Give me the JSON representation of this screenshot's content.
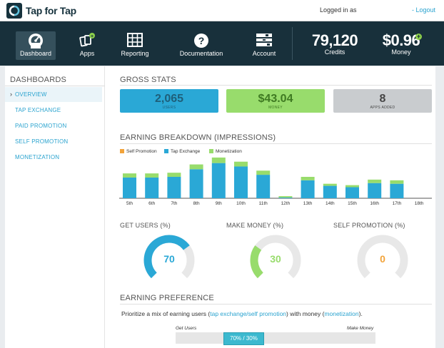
{
  "app": {
    "brand": "Tap for Tap",
    "logged_in_label": "Logged in as",
    "logout_label": "- Logout"
  },
  "nav": {
    "items": [
      {
        "label": "Dashboard",
        "icon": "speedometer-icon",
        "active": true
      },
      {
        "label": "Apps",
        "icon": "apps-plus-icon",
        "active": false
      },
      {
        "label": "Reporting",
        "icon": "table-grid-icon",
        "active": false
      },
      {
        "label": "Documentation",
        "icon": "question-circle-icon",
        "active": false
      },
      {
        "label": "Account",
        "icon": "account-list-icon",
        "active": false
      }
    ],
    "credits": {
      "value": "79,120",
      "label": "Credits"
    },
    "money": {
      "value": "$0.96",
      "label": "Money"
    }
  },
  "sidebar": {
    "title": "DASHBOARDS",
    "items": [
      {
        "label": "OVERVIEW",
        "active": true
      },
      {
        "label": "TAP EXCHANGE",
        "active": false
      },
      {
        "label": "PAID PROMOTION",
        "active": false
      },
      {
        "label": "SELF PROMOTION",
        "active": false
      },
      {
        "label": "MONETIZATION",
        "active": false
      }
    ]
  },
  "gross": {
    "title": "GROSS STATS",
    "boxes": [
      {
        "value": "2,065",
        "label": "USERS",
        "color": "#2aa8d6",
        "text_color": "#1e5f7a"
      },
      {
        "value": "$43.04",
        "label": "MONEY",
        "color": "#98dc6c",
        "text_color": "#3f7a22"
      },
      {
        "value": "8",
        "label": "APPS ADDED",
        "color": "#c9cccf",
        "text_color": "#444444"
      }
    ]
  },
  "earning": {
    "title": "EARNING BREAKDOWN (IMPRESSIONS)",
    "legend": [
      {
        "label": "Self Promotion",
        "color": "#f2a33a"
      },
      {
        "label": "Tap Exchange",
        "color": "#2aa8d6"
      },
      {
        "label": "Monetization",
        "color": "#98dc6c"
      }
    ]
  },
  "chart_data": {
    "type": "bar",
    "stacked": true,
    "categories": [
      "5th",
      "6th",
      "7th",
      "8th",
      "9th",
      "10th",
      "11th",
      "12th",
      "13th",
      "14th",
      "15th",
      "16th",
      "17th",
      "18th"
    ],
    "series": [
      {
        "name": "Self Promotion",
        "values": [
          0,
          0,
          0,
          0,
          0,
          0,
          0,
          0,
          0,
          0,
          0,
          0,
          0,
          0
        ]
      },
      {
        "name": "Tap Exchange",
        "values": [
          30,
          30,
          31,
          42,
          51,
          46,
          34,
          1,
          26,
          18,
          16,
          22,
          21,
          0
        ]
      },
      {
        "name": "Monetization",
        "values": [
          6,
          6,
          6,
          7,
          8,
          7,
          6,
          2,
          5,
          3,
          3,
          5,
          5,
          0
        ]
      }
    ],
    "ylim": [
      0,
      62
    ]
  },
  "gauges": [
    {
      "title": "GET USERS (%)",
      "value": 70,
      "label": "70",
      "color": "#2aa8d6"
    },
    {
      "title": "MAKE MONEY (%)",
      "value": 30,
      "label": "30",
      "color": "#98dc6c"
    },
    {
      "title": "SELF PROMOTION (%)",
      "value": 0,
      "label": "0",
      "color": "#f2a33a"
    }
  ],
  "preference": {
    "title": "EARNING PREFERENCE",
    "text_before": "Prioritize a mix of earning users (",
    "link1": "tap exchange/self promotion",
    "text_middle": ") with money (",
    "link2": "monetization",
    "text_after": ").",
    "left_label": "Get Users",
    "right_label": "Make Money",
    "slider_label": "70% / 30%",
    "slider_value": 0.7
  }
}
